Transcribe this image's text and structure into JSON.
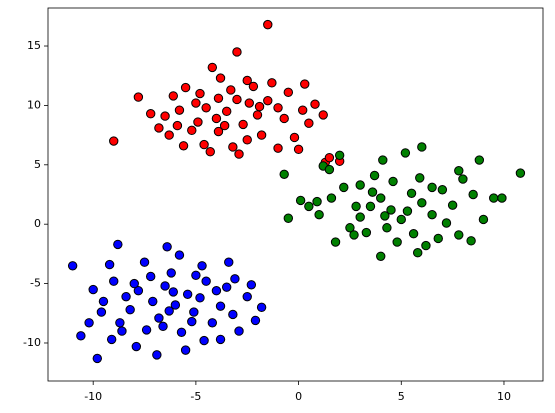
{
  "chart_data": {
    "type": "scatter",
    "xlim": [
      -12.2,
      11.9
    ],
    "ylim": [
      -13.2,
      18.2
    ],
    "xticks": [
      -10,
      -5,
      0,
      5,
      10
    ],
    "yticks": [
      -10,
      -5,
      0,
      5,
      10,
      15
    ],
    "grid": false,
    "edgecolor": "black",
    "series": [
      {
        "color": "red",
        "x": [
          -1.5,
          -9,
          -7.8,
          -3,
          2,
          1.3,
          -4.2,
          -2.5,
          -5.5,
          -3.8,
          -6.5,
          -5.8,
          -5,
          -4.5,
          -4,
          -3.5,
          -3,
          -2.7,
          -2,
          -1.5,
          -1,
          -0.5,
          0.3,
          0.8,
          1.2,
          0.5,
          -0.2,
          -1,
          -1.8,
          -2.5,
          -3.2,
          -3.9,
          -4.6,
          -5.2,
          -5.9,
          -6.8,
          -7.2,
          -6.1,
          -4.8,
          -3.3,
          -2.2,
          -1.3,
          -4.3,
          -2.9,
          -1.9,
          -0.7,
          0.2,
          -3.6,
          -4.9,
          -6.3,
          -5.6,
          -2.4,
          -3.9,
          1.5,
          0
        ],
        "y": [
          16.8,
          7,
          10.7,
          14.5,
          5.3,
          5.2,
          13.2,
          12.1,
          11.5,
          12.3,
          9.1,
          9.6,
          10.2,
          9.8,
          8.9,
          9.5,
          10.5,
          8.4,
          9.2,
          10.4,
          9.8,
          11.1,
          11.8,
          10.1,
          9.2,
          8.5,
          7.3,
          6.4,
          7.5,
          7.1,
          6.5,
          7.8,
          6.7,
          7.9,
          8.3,
          8.1,
          9.3,
          10.8,
          11,
          11.3,
          11.6,
          11.9,
          6.1,
          5.9,
          9.9,
          8.9,
          9.6,
          8.3,
          8.6,
          7.5,
          6.6,
          10.2,
          10.6,
          5.6,
          6.3
        ]
      },
      {
        "color": "green",
        "x": [
          10.8,
          -0.7,
          4,
          1.2,
          1.5,
          2,
          0.1,
          -0.5,
          0.5,
          1,
          1.8,
          2.5,
          3,
          3.5,
          4,
          4.5,
          5,
          5.5,
          6,
          6.5,
          7,
          7.5,
          8,
          8.5,
          9,
          9.5,
          8.8,
          7.8,
          6,
          5.2,
          4.1,
          3.7,
          3,
          2.2,
          1.6,
          2.8,
          3.3,
          4.3,
          4.8,
          5.6,
          6.2,
          7.8,
          8.4,
          6.8,
          5.9,
          4.6,
          5.3,
          6.5,
          4.2,
          3.6,
          7.2,
          2.7,
          9.9,
          0.9,
          5.8
        ],
        "y": [
          4.3,
          4.2,
          -2.7,
          4.9,
          4.6,
          5.8,
          2,
          0.5,
          1.5,
          0.8,
          -1.5,
          -0.3,
          0.6,
          1.5,
          2.2,
          1.2,
          0.4,
          2.6,
          1.8,
          0.8,
          2.9,
          1.6,
          3.8,
          2.5,
          0.4,
          2.2,
          5.4,
          4.5,
          6.5,
          6,
          5.4,
          4.1,
          3.3,
          3.1,
          2.2,
          1.5,
          -0.7,
          -0.3,
          -1.5,
          -0.8,
          -1.8,
          -0.9,
          -1.4,
          -1.2,
          3.9,
          3.6,
          1.1,
          3.1,
          0.7,
          2.7,
          0.1,
          -0.9,
          2.2,
          1.9,
          -2.4
        ]
      },
      {
        "color": "blue",
        "x": [
          -11,
          -9.8,
          -1.8,
          -10,
          -9.5,
          -9,
          -8.7,
          -8.2,
          -7.8,
          -7.5,
          -7.1,
          -6.8,
          -6.5,
          -6.2,
          -6,
          -5.7,
          -5.4,
          -5.1,
          -4.8,
          -4.5,
          -4.2,
          -3.8,
          -3.5,
          -3.2,
          -2.9,
          -2.5,
          -3.4,
          -4.7,
          -5.8,
          -6.4,
          -8.8,
          -9.2,
          -10.2,
          -10.6,
          -9.1,
          -7.9,
          -6.9,
          -5.5,
          -4.6,
          -3.8,
          -7.4,
          -8.4,
          -9.6,
          -6.6,
          -5.2,
          -4,
          -2.3,
          -2.1,
          -7.2,
          -8,
          -6.1,
          -5,
          -8.6,
          -3.1,
          -6.3
        ],
        "y": [
          -3.5,
          -11.3,
          -7,
          -5.5,
          -6.5,
          -4.8,
          -8.3,
          -7.2,
          -5.6,
          -3.2,
          -6.5,
          -7.9,
          -5.2,
          -4.1,
          -6.8,
          -9.1,
          -5.9,
          -7.4,
          -6.2,
          -4.8,
          -8.3,
          -6.9,
          -5.3,
          -7.6,
          -9,
          -6.1,
          -3.2,
          -3.5,
          -2.6,
          -1.9,
          -1.7,
          -3.4,
          -8.3,
          -9.4,
          -9.7,
          -10.3,
          -11,
          -10.6,
          -9.8,
          -9.7,
          -8.9,
          -6.1,
          -7.4,
          -8.6,
          -8.2,
          -5.6,
          -5.1,
          -8.1,
          -4.4,
          -5,
          -5.7,
          -4.3,
          -9,
          -4.6,
          -7.3
        ]
      }
    ]
  }
}
